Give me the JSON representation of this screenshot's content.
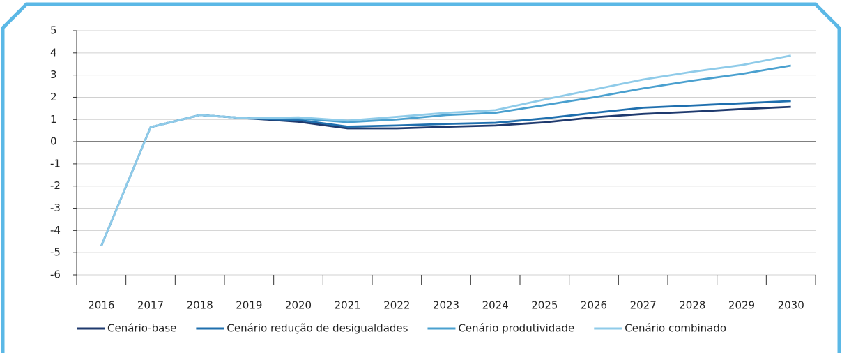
{
  "chart_data": {
    "type": "line",
    "categories": [
      "2016",
      "2017",
      "2018",
      "2019",
      "2020",
      "2021",
      "2022",
      "2023",
      "2024",
      "2025",
      "2026",
      "2027",
      "2028",
      "2029",
      "2030"
    ],
    "series": [
      {
        "name": "Cenário-base",
        "color": "#1f3a6e",
        "values": [
          -4.7,
          0.65,
          1.2,
          1.05,
          0.9,
          0.6,
          0.6,
          0.67,
          0.73,
          0.87,
          1.1,
          1.25,
          1.35,
          1.47,
          1.57
        ]
      },
      {
        "name": "Cenário redução de desigualdades",
        "color": "#1f6fae",
        "values": [
          -4.7,
          0.65,
          1.2,
          1.05,
          0.98,
          0.68,
          0.73,
          0.8,
          0.85,
          1.05,
          1.3,
          1.53,
          1.63,
          1.73,
          1.83
        ]
      },
      {
        "name": "Cenário produtividade",
        "color": "#4aa0cf",
        "values": [
          -4.7,
          0.65,
          1.2,
          1.05,
          1.05,
          0.88,
          1.0,
          1.2,
          1.3,
          1.65,
          2.0,
          2.4,
          2.75,
          3.05,
          3.43
        ]
      },
      {
        "name": "Cenário combinado",
        "color": "#8fcbe9",
        "values": [
          -4.7,
          0.65,
          1.2,
          1.05,
          1.1,
          0.95,
          1.12,
          1.3,
          1.42,
          1.9,
          2.35,
          2.8,
          3.15,
          3.45,
          3.88
        ]
      }
    ],
    "ylim": [
      -6,
      5
    ],
    "yticks": [
      5,
      4,
      3,
      2,
      1,
      0,
      -1,
      -2,
      -3,
      -4,
      -5,
      -6
    ],
    "grid": true,
    "legend": "bottom"
  }
}
